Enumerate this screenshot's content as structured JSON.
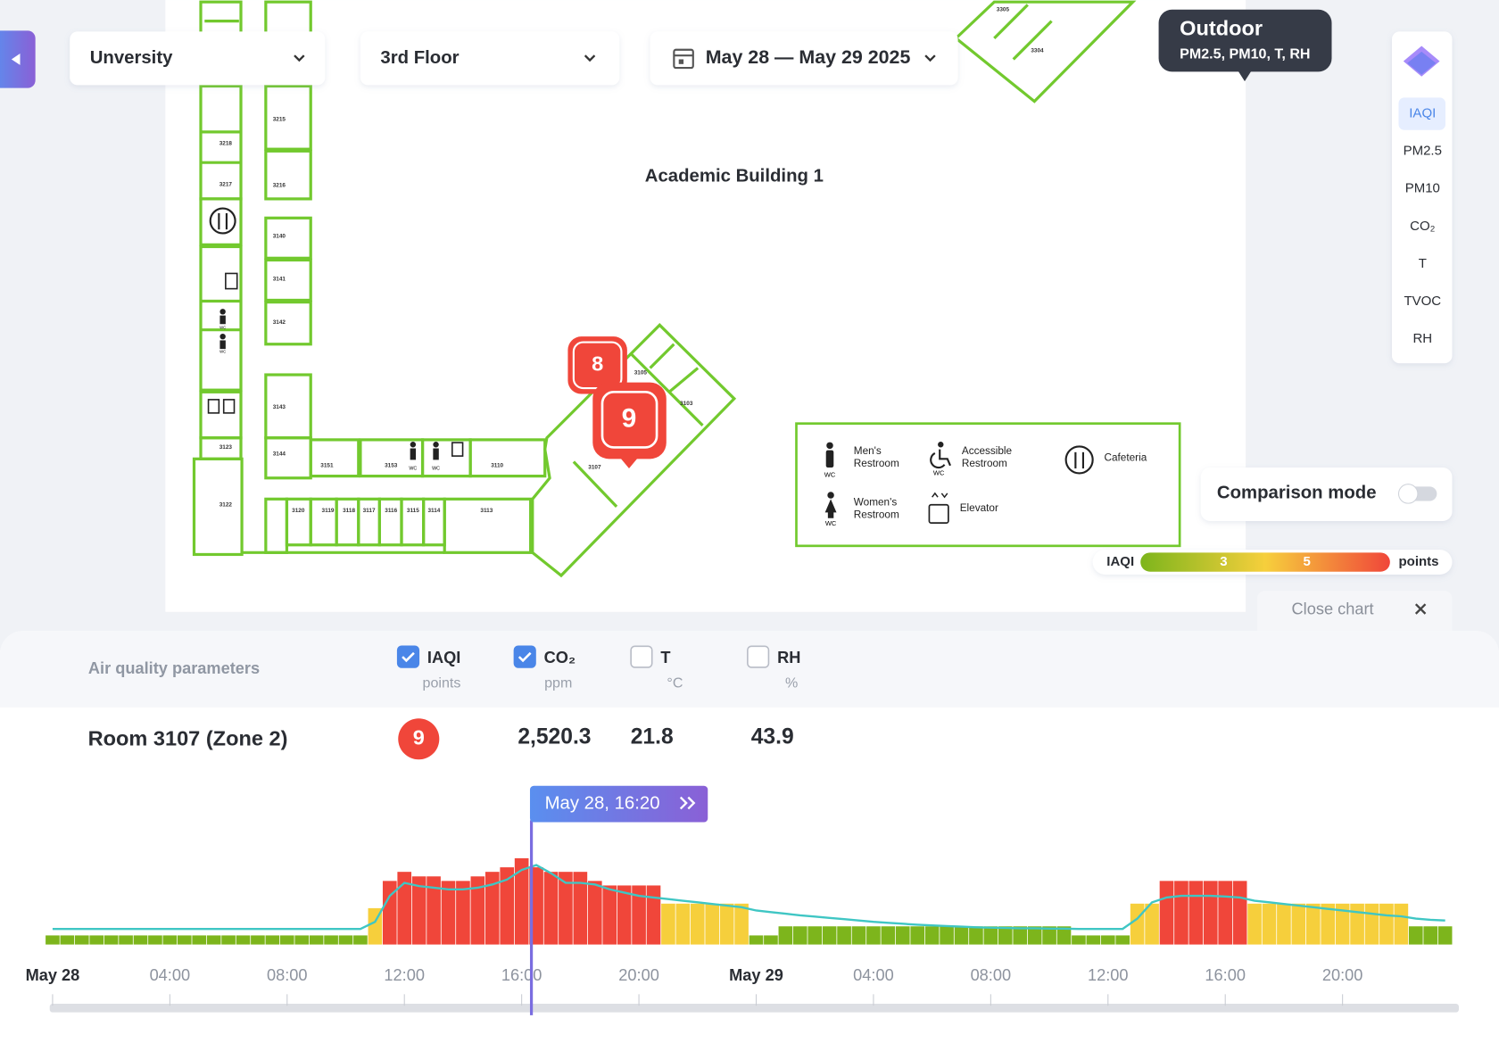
{
  "filters": {
    "site": "Unversity",
    "floor": "3rd Floor",
    "date_range": "May 28 — May 29 2025"
  },
  "outdoor": {
    "title": "Outdoor",
    "params": "PM2.5, PM10, T, RH"
  },
  "parameter_menu": {
    "items": [
      "IAQI",
      "PM2.5",
      "PM10",
      "CO₂",
      "T",
      "TVOC",
      "RH"
    ],
    "selected": 0
  },
  "floor_plan": {
    "building": "Academic Building 1",
    "rooms": [
      "3305",
      "3304",
      "3215",
      "3218",
      "3217",
      "3216",
      "3140",
      "3141",
      "3142",
      "3143",
      "3144",
      "3123",
      "3122",
      "3151",
      "3153",
      "3110",
      "3120",
      "3119",
      "3118",
      "3117",
      "3116",
      "3115",
      "3114",
      "3113",
      "3107",
      "3105",
      "3103"
    ],
    "wc_label": "WC",
    "sensors": [
      8,
      9
    ]
  },
  "legend": {
    "items": [
      {
        "label": [
          "Men's",
          "Restroom"
        ]
      },
      {
        "label": [
          "Accessible",
          "Restroom"
        ]
      },
      {
        "label": [
          "Cafeteria"
        ]
      },
      {
        "label": [
          "Women's",
          "Restroom"
        ]
      },
      {
        "label": [
          "Elevator"
        ]
      }
    ]
  },
  "comparison_mode": {
    "label": "Comparison mode",
    "enabled": false
  },
  "iaqi_scale": {
    "label": "IAQI",
    "ticks": [
      3,
      5
    ],
    "unit": "points",
    "colors": [
      "#7db51c",
      "#f6cf3c",
      "#f0463a"
    ]
  },
  "close_chart": "Close chart",
  "panel": {
    "title": "Air quality parameters",
    "parameters": [
      {
        "name": "IAQI",
        "unit": "points",
        "checked": true
      },
      {
        "name": "CO₂",
        "unit": "ppm",
        "checked": true
      },
      {
        "name": "T",
        "unit": "°C",
        "checked": false
      },
      {
        "name": "RH",
        "unit": "%",
        "checked": false
      }
    ],
    "room": {
      "name": "Room 3107 (Zone 2)",
      "values": [
        9,
        2520.3,
        21.8,
        43.9
      ],
      "value_labels": [
        "9",
        "2,520.3",
        "21.8",
        "43.9"
      ]
    }
  },
  "chart_data": {
    "type": "bar",
    "x": [
      0,
      0.5,
      1,
      1.5,
      2,
      2.5,
      3,
      3.5,
      4,
      4.5,
      5,
      5.5,
      6,
      6.5,
      7,
      7.5,
      8,
      8.5,
      9,
      9.5,
      10,
      10.5,
      11,
      11.5,
      12,
      12.5,
      13,
      13.5,
      14,
      14.5,
      15,
      15.5,
      16,
      16.5,
      17,
      17.5,
      18,
      18.5,
      19,
      19.5,
      20,
      20.5,
      21,
      21.5,
      22,
      22.5,
      23,
      23.5,
      24,
      24.5,
      25,
      25.5,
      26,
      26.5,
      27,
      27.5,
      28,
      28.5,
      29,
      29.5,
      30,
      30.5,
      31,
      31.5,
      32,
      32.5,
      33,
      33.5,
      34,
      34.5,
      35,
      35.5,
      36,
      36.5,
      37,
      37.5,
      38,
      38.5,
      39,
      39.5,
      40,
      40.5,
      41,
      41.5,
      42,
      42.5,
      43,
      43.5,
      44,
      44.5,
      45,
      45.5,
      46,
      46.5,
      47,
      47.5
    ],
    "series": [
      {
        "values": [
          1,
          1,
          1,
          1,
          1,
          1,
          1,
          1,
          1,
          1,
          1,
          1,
          1,
          1,
          1,
          1,
          1,
          1,
          1,
          1,
          1,
          1,
          4,
          7,
          8,
          7.5,
          7.5,
          7,
          7,
          7.5,
          8,
          8.5,
          9.5,
          8.5,
          8,
          8,
          8,
          7,
          6.5,
          6.5,
          6.5,
          6.5,
          4.5,
          4.5,
          4.5,
          4.5,
          4.5,
          4.5,
          1,
          1,
          2,
          2,
          2,
          2,
          2,
          2,
          2,
          2,
          2,
          2,
          2,
          2,
          2,
          2,
          2,
          2,
          2,
          2,
          2,
          2,
          1,
          1,
          1,
          1,
          4.5,
          4.5,
          7,
          7,
          7,
          7,
          7,
          7,
          4.5,
          4.5,
          4.5,
          4.5,
          4.5,
          4.5,
          4.5,
          4.5,
          4.5,
          4.5,
          4.5,
          2,
          2,
          2
        ]
      },
      {
        "type": "line",
        "axis": "y2",
        "color": "#3fc6c4",
        "values": [
          480,
          480,
          480,
          480,
          480,
          480,
          480,
          480,
          480,
          480,
          480,
          480,
          480,
          480,
          480,
          480,
          480,
          480,
          480,
          480,
          480,
          480,
          700,
          1500,
          1900,
          1800,
          1750,
          1700,
          1700,
          1750,
          1850,
          2000,
          2300,
          2450,
          2200,
          1900,
          1900,
          1850,
          1700,
          1600,
          1500,
          1450,
          1400,
          1350,
          1300,
          1250,
          1200,
          1150,
          1050,
          1000,
          950,
          900,
          860,
          820,
          780,
          740,
          700,
          670,
          640,
          610,
          590,
          570,
          550,
          530,
          520,
          510,
          500,
          500,
          490,
          490,
          480,
          480,
          480,
          480,
          800,
          1300,
          1450,
          1500,
          1500,
          1500,
          1480,
          1450,
          1350,
          1300,
          1250,
          1200,
          1150,
          1100,
          1050,
          1000,
          950,
          900,
          870,
          800,
          760,
          740
        ]
      }
    ],
    "xlim": [
      0,
      48
    ],
    "xticks": [
      {
        "value": 0,
        "label": "May 28"
      },
      {
        "value": 4,
        "label": "04:00"
      },
      {
        "value": 8,
        "label": "08:00"
      },
      {
        "value": 12,
        "label": "12:00"
      },
      {
        "value": 16,
        "label": "16:00"
      },
      {
        "value": 20,
        "label": "20:00"
      },
      {
        "value": 24,
        "label": "May 29"
      },
      {
        "value": 28,
        "label": "04:00"
      },
      {
        "value": 32,
        "label": "08:00"
      },
      {
        "value": 36,
        "label": "12:00"
      },
      {
        "value": 40,
        "label": "16:00"
      },
      {
        "value": 44,
        "label": "20:00"
      }
    ],
    "ylim": [
      0,
      10
    ],
    "y2lim": [
      0,
      2800
    ],
    "cursor": {
      "x": 16.333,
      "label": "May 28, 16:20"
    }
  }
}
